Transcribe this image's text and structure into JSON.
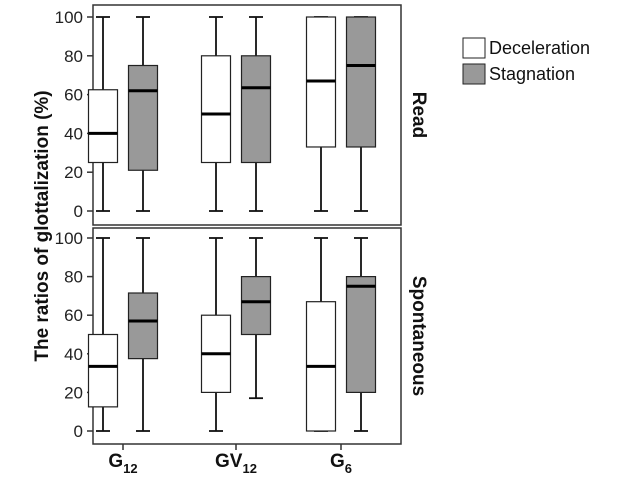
{
  "chart_data": {
    "type": "box",
    "ylabel": "The ratios of glottalization (%)",
    "ylim": [
      0,
      100
    ],
    "yticks": [
      "0",
      "20",
      "40",
      "60",
      "80",
      "100"
    ],
    "categories": [
      {
        "base": "G",
        "sub": "12"
      },
      {
        "base": "GV",
        "sub": "12"
      },
      {
        "base": "G",
        "sub": "6"
      }
    ],
    "legend": {
      "placement": "right",
      "entries": [
        {
          "name": "Deceleration",
          "color": "#ffffff"
        },
        {
          "name": "Stagnation",
          "color": "#999999"
        }
      ]
    },
    "panels": [
      {
        "label": "Read",
        "series": [
          {
            "name": "Deceleration",
            "color": "#ffffff",
            "boxes": [
              {
                "min": 0,
                "q1": 25,
                "median": 40,
                "q3": 62.5,
                "max": 100
              },
              {
                "min": 0,
                "q1": 25,
                "median": 50,
                "q3": 80,
                "max": 100
              },
              {
                "min": 0,
                "q1": 33,
                "median": 67,
                "q3": 100,
                "max": 100
              }
            ]
          },
          {
            "name": "Stagnation",
            "color": "#999999",
            "boxes": [
              {
                "min": 0,
                "q1": 21,
                "median": 62,
                "q3": 75,
                "max": 100
              },
              {
                "min": 0,
                "q1": 25,
                "median": 63.5,
                "q3": 80,
                "max": 100
              },
              {
                "min": 0,
                "q1": 33,
                "median": 75,
                "q3": 100,
                "max": 100
              }
            ]
          }
        ]
      },
      {
        "label": "Spontaneous",
        "series": [
          {
            "name": "Deceleration",
            "color": "#ffffff",
            "boxes": [
              {
                "min": 0,
                "q1": 12.5,
                "median": 33.5,
                "q3": 50,
                "max": 100
              },
              {
                "min": 0,
                "q1": 20,
                "median": 40,
                "q3": 60,
                "max": 100
              },
              {
                "min": 0,
                "q1": 0,
                "median": 33.5,
                "q3": 67,
                "max": 100
              }
            ]
          },
          {
            "name": "Stagnation",
            "color": "#999999",
            "boxes": [
              {
                "min": 0,
                "q1": 37.5,
                "median": 57,
                "q3": 71.5,
                "max": 100
              },
              {
                "min": 17,
                "q1": 50,
                "median": 67,
                "q3": 80,
                "max": 100
              },
              {
                "min": 0,
                "q1": 20,
                "median": 75,
                "q3": 80,
                "max": 100
              }
            ]
          }
        ]
      }
    ]
  }
}
